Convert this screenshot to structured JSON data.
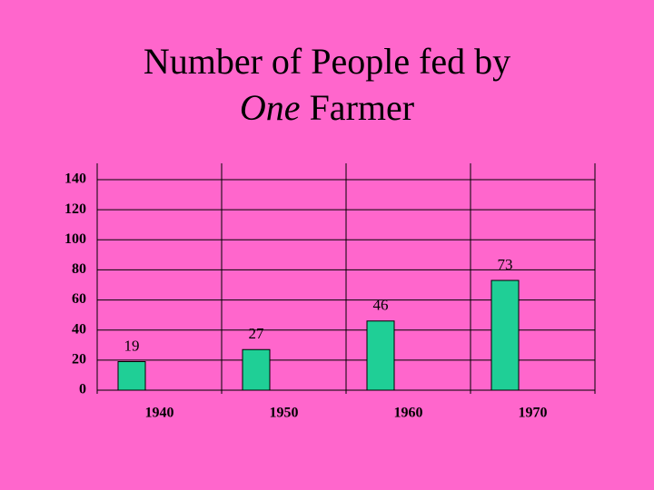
{
  "chart_data": {
    "type": "bar",
    "title_parts": [
      "Number of People fed by",
      "One",
      "Farmer"
    ],
    "categories": [
      "1940",
      "1950",
      "1960",
      "1970"
    ],
    "values": [
      19,
      27,
      46,
      73
    ],
    "color": "#1fcf96",
    "ylim": [
      0,
      140
    ],
    "yticks": [
      0,
      20,
      40,
      60,
      80,
      100,
      120,
      140
    ],
    "grid": true
  }
}
